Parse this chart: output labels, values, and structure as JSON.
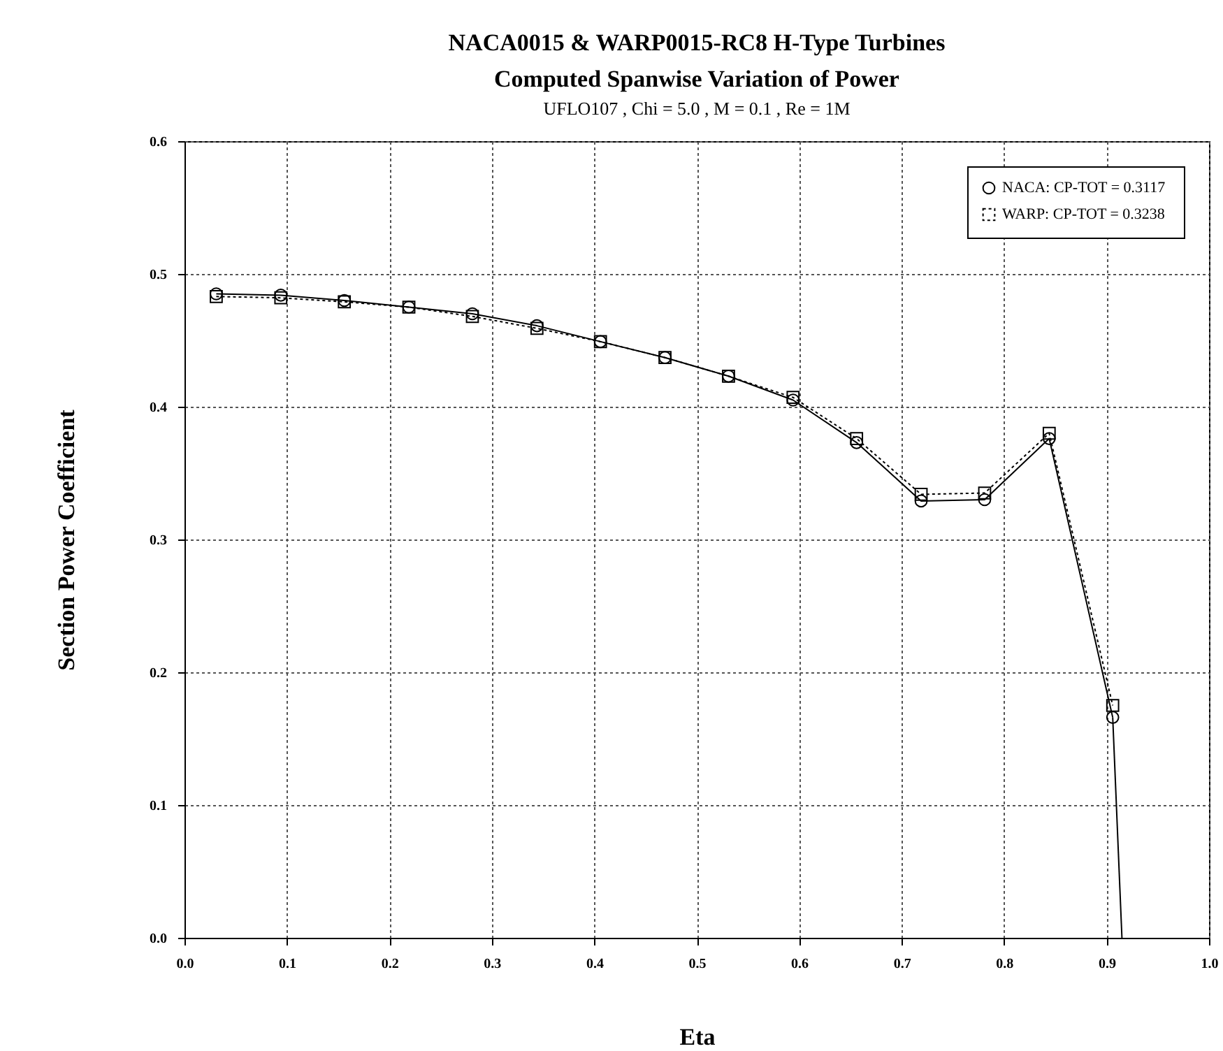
{
  "chart_data": {
    "type": "line",
    "title": "NACA0015 & WARP0015-RC8 H-Type Turbines",
    "subtitle": "Computed Spanwise Variation of Power",
    "annotations": [
      "UFLO107  ,  Chi = 5.0  ,  M = 0.1  ,  Re = 1M"
    ],
    "xlabel": "Eta",
    "ylabel": "Section Power Coefficient",
    "xlim": [
      0,
      1
    ],
    "xticks": [
      {
        "value": 0,
        "label": "0.0"
      },
      0.1,
      0.2,
      0.3,
      0.4,
      0.5,
      0.6,
      0.7,
      0.8,
      0.9,
      {
        "value": 1,
        "label": "1.0"
      }
    ],
    "ylim": [
      0,
      0.6
    ],
    "yticks": [
      {
        "value": 0,
        "label": "0.0"
      },
      0.1,
      0.2,
      0.3,
      0.4,
      0.5,
      0.6
    ],
    "grid": true,
    "legend": "top right",
    "series": [
      {
        "name": "NACA:  CP-TOT = 0.3117",
        "color": "#000000",
        "marker": "circle",
        "line_style": "solid",
        "x": [
          0.031,
          0.094,
          0.156,
          0.219,
          0.281,
          0.344,
          0.406,
          0.469,
          0.531,
          0.594,
          0.656,
          0.719,
          0.781,
          0.844,
          0.906
        ],
        "values": [
          0.485,
          0.484,
          0.48,
          0.475,
          0.47,
          0.461,
          0.449,
          0.437,
          0.423,
          0.405,
          0.373,
          0.329,
          0.33,
          0.376,
          0.166
        ]
      },
      {
        "name": "WARP:  CP-TOT = 0.3238",
        "color": "#000000",
        "marker": "square",
        "line_style": "dotted",
        "x": [
          0.031,
          0.094,
          0.156,
          0.219,
          0.281,
          0.344,
          0.406,
          0.469,
          0.531,
          0.594,
          0.656,
          0.719,
          0.781,
          0.844,
          0.906
        ],
        "values": [
          0.483,
          0.482,
          0.479,
          0.475,
          0.468,
          0.459,
          0.449,
          0.437,
          0.423,
          0.407,
          0.376,
          0.334,
          0.335,
          0.38,
          0.175
        ]
      },
      {
        "color": "#000000",
        "marker": "none",
        "line_style": "solid",
        "x": [
          0.906,
          0.915
        ],
        "values": [
          0.166,
          0
        ]
      }
    ]
  }
}
